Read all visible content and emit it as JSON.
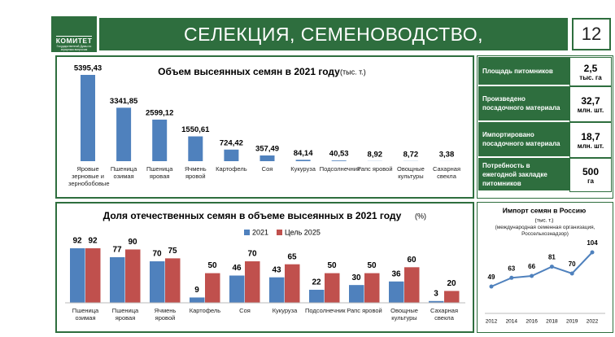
{
  "header": {
    "logo_title": "КОМИТЕТ",
    "logo_subtitle": "Государственной Думы по аграрным вопросам",
    "title": "СЕЛЕКЦИЯ, СЕМЕНОВОДСТВО, ПИТОМНИКОВОДСТВО",
    "page": "12"
  },
  "stats": {
    "rows": [
      {
        "label": "Площадь питомников",
        "value": "2,5",
        "unit": "тыс. га"
      },
      {
        "label": "Произведено посадочного материала",
        "value": "32,7",
        "unit": "млн. шт."
      },
      {
        "label": "Импортировано посадочного материала",
        "value": "18,7",
        "unit": "млн. шт."
      },
      {
        "label": "Потребность в ежегодной закладке питомников",
        "value": "500",
        "unit": "га"
      }
    ]
  },
  "chart_data": [
    {
      "type": "bar",
      "title": "Объем высеянных семян в 2021 году",
      "subtitle": "(тыс. т.)",
      "color": "#4f81bd",
      "categories": [
        "Яровые зерновые и зернобобовые",
        "Пшеница озимая",
        "Пшеница яровая",
        "Ячмень яровой",
        "Картофель",
        "Соя",
        "Кукуруза",
        "Подсолнечник",
        "Рапс яровой",
        "Овощные культуры",
        "Сахарная свекла"
      ],
      "values": [
        5395.43,
        3341.85,
        2599.12,
        1550.61,
        724.42,
        357.49,
        84.14,
        40.53,
        8.92,
        8.72,
        3.38
      ],
      "value_labels": [
        "5395,43",
        "3341,85",
        "2599,12",
        "1550,61",
        "724,42",
        "357,49",
        "84,14",
        "40,53",
        "8,92",
        "8,72",
        "3,38"
      ]
    },
    {
      "type": "grouped_bar",
      "title": "Доля отечественных семян в объеме высеянных в 2021 году",
      "subtitle": "(%)",
      "categories": [
        "Пшеница озимая",
        "Пшеница яровая",
        "Ячмень яровой",
        "Картофель",
        "Соя",
        "Кукуруза",
        "Подсолнечник",
        "Рапс яровой",
        "Овощные культуры",
        "Сахарная свекла"
      ],
      "series": [
        {
          "name": "2021",
          "color": "#4f81bd",
          "values": [
            92,
            77,
            70,
            9,
            46,
            43,
            22,
            30,
            36,
            3
          ]
        },
        {
          "name": "Цель 2025",
          "color": "#c0504d",
          "values": [
            92,
            90,
            75,
            50,
            70,
            65,
            50,
            50,
            60,
            20
          ]
        }
      ]
    },
    {
      "type": "line",
      "title": "Импорт семян в Россию",
      "subtitle": "(тыс. т.)",
      "note": "(международная семенная организация, Россельхознадзор)",
      "color": "#4f81bd",
      "categories": [
        "2012",
        "2014",
        "2016",
        "2018",
        "2019",
        "2022"
      ],
      "values": [
        49,
        63,
        66,
        81,
        70,
        104
      ]
    }
  ]
}
